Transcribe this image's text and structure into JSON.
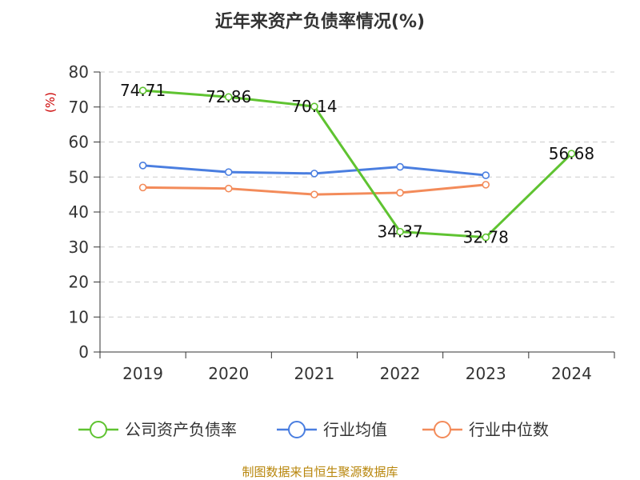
{
  "chart_data": {
    "type": "line",
    "title": "近年来资产负债率情况(%)",
    "ylabel": "(%)",
    "xlabel": "",
    "categories": [
      "2019",
      "2020",
      "2021",
      "2022",
      "2023",
      "2024"
    ],
    "ylim": [
      0,
      80
    ],
    "yticks": [
      0,
      10,
      20,
      30,
      40,
      50,
      60,
      70,
      80
    ],
    "grid": true,
    "legend": "bottom",
    "series": [
      {
        "name": "公司资产负债率",
        "color": "#5fc331",
        "values": [
          74.71,
          72.86,
          70.14,
          34.37,
          32.78,
          56.68
        ],
        "labels": [
          "74.71",
          "72.86",
          "70.14",
          "34.37",
          "32.78",
          "56.68"
        ]
      },
      {
        "name": "行业均值",
        "color": "#4a7ee0",
        "values": [
          53.3,
          51.4,
          51.0,
          52.9,
          50.5,
          null
        ]
      },
      {
        "name": "行业中位数",
        "color": "#f38b5a",
        "values": [
          47.0,
          46.7,
          45.0,
          45.5,
          47.8,
          null
        ]
      }
    ]
  },
  "source": "制图数据来自恒生聚源数据库"
}
